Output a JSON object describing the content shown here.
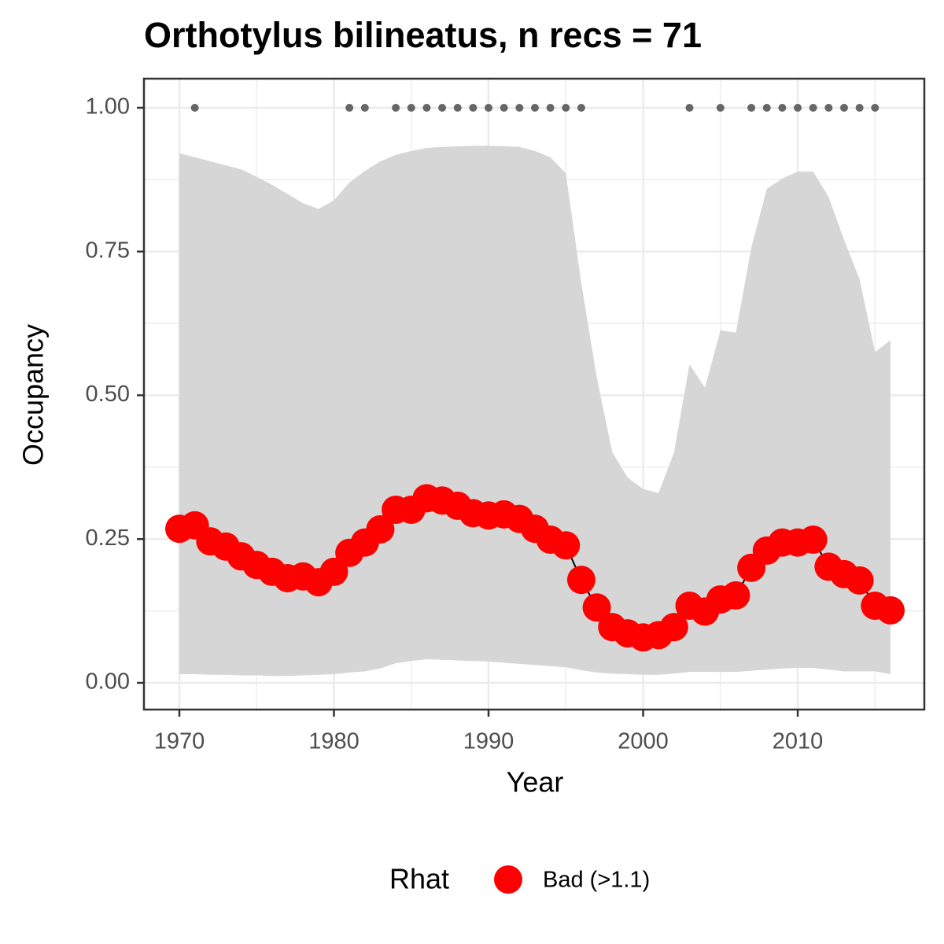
{
  "chart_data": {
    "type": "line",
    "title": "Orthotylus bilineatus, n recs = 71",
    "x_label": "Year",
    "y_label": "Occupancy",
    "legend_title": "Rhat",
    "x": [
      1970,
      1971,
      1972,
      1973,
      1974,
      1975,
      1976,
      1977,
      1978,
      1979,
      1980,
      1981,
      1982,
      1983,
      1984,
      1985,
      1986,
      1987,
      1988,
      1989,
      1990,
      1991,
      1992,
      1993,
      1994,
      1995,
      1996,
      1997,
      1998,
      1999,
      2000,
      2001,
      2002,
      2003,
      2004,
      2005,
      2006,
      2007,
      2008,
      2009,
      2010,
      2011,
      2012,
      2013,
      2014,
      2015,
      2016
    ],
    "series": [
      {
        "name": "Bad (>1.1)",
        "color": "#ff0000",
        "line_color": "#000000",
        "values": [
          0.268,
          0.274,
          0.246,
          0.237,
          0.22,
          0.205,
          0.193,
          0.182,
          0.185,
          0.175,
          0.193,
          0.226,
          0.244,
          0.267,
          0.301,
          0.301,
          0.321,
          0.317,
          0.308,
          0.295,
          0.291,
          0.293,
          0.285,
          0.268,
          0.249,
          0.239,
          0.179,
          0.131,
          0.097,
          0.086,
          0.079,
          0.083,
          0.097,
          0.134,
          0.124,
          0.145,
          0.152,
          0.2,
          0.23,
          0.244,
          0.244,
          0.249,
          0.202,
          0.189,
          0.178,
          0.134,
          0.126
        ]
      }
    ],
    "band": {
      "color": "#d6d6d6",
      "upper": [
        0.921,
        0.914,
        0.907,
        0.9,
        0.893,
        0.88,
        0.866,
        0.85,
        0.834,
        0.824,
        0.839,
        0.87,
        0.89,
        0.907,
        0.918,
        0.925,
        0.93,
        0.932,
        0.933,
        0.934,
        0.934,
        0.933,
        0.932,
        0.925,
        0.914,
        0.886,
        0.695,
        0.531,
        0.401,
        0.357,
        0.337,
        0.33,
        0.401,
        0.554,
        0.513,
        0.613,
        0.609,
        0.757,
        0.859,
        0.877,
        0.889,
        0.889,
        0.845,
        0.77,
        0.702,
        0.575,
        0.596
      ],
      "lower": [
        0.015,
        0.015,
        0.014,
        0.014,
        0.013,
        0.013,
        0.012,
        0.012,
        0.013,
        0.014,
        0.015,
        0.018,
        0.02,
        0.025,
        0.034,
        0.038,
        0.041,
        0.04,
        0.039,
        0.038,
        0.037,
        0.035,
        0.033,
        0.031,
        0.029,
        0.027,
        0.022,
        0.018,
        0.016,
        0.015,
        0.014,
        0.014,
        0.016,
        0.019,
        0.019,
        0.019,
        0.019,
        0.021,
        0.023,
        0.025,
        0.026,
        0.026,
        0.023,
        0.02,
        0.02,
        0.02,
        0.015
      ]
    },
    "records": {
      "color": "#666666",
      "x": [
        1971,
        1981,
        1982,
        1984,
        1985,
        1986,
        1987,
        1988,
        1989,
        1990,
        1991,
        1992,
        1993,
        1994,
        1995,
        1996,
        2003,
        2005,
        2007,
        2008,
        2009,
        2010,
        2011,
        2012,
        2013,
        2014,
        2015
      ],
      "values": [
        1,
        1,
        1,
        1,
        1,
        1,
        1,
        1,
        1,
        1,
        1,
        1,
        1,
        1,
        1,
        1,
        1,
        1,
        1,
        1,
        1,
        1,
        1,
        1,
        1,
        1,
        1
      ]
    },
    "xlim": [
      1967.71,
      2018.19
    ],
    "ylim": [
      -0.0465,
      1.0506
    ],
    "xticks": [
      1970,
      1980,
      1990,
      2000,
      2010
    ],
    "yticks": [
      {
        "value": 0,
        "label": "0.00"
      },
      {
        "value": 0.25,
        "label": "0.25"
      },
      {
        "value": 0.5,
        "label": "0.50"
      },
      {
        "value": 0.75,
        "label": "0.75"
      },
      {
        "value": 1,
        "label": "1.00"
      }
    ],
    "minor_xticks": [
      1975,
      1985,
      1995,
      2005,
      2015
    ],
    "minor_yticks": [
      0.125,
      0.375,
      0.625,
      0.875
    ],
    "grid": true
  }
}
